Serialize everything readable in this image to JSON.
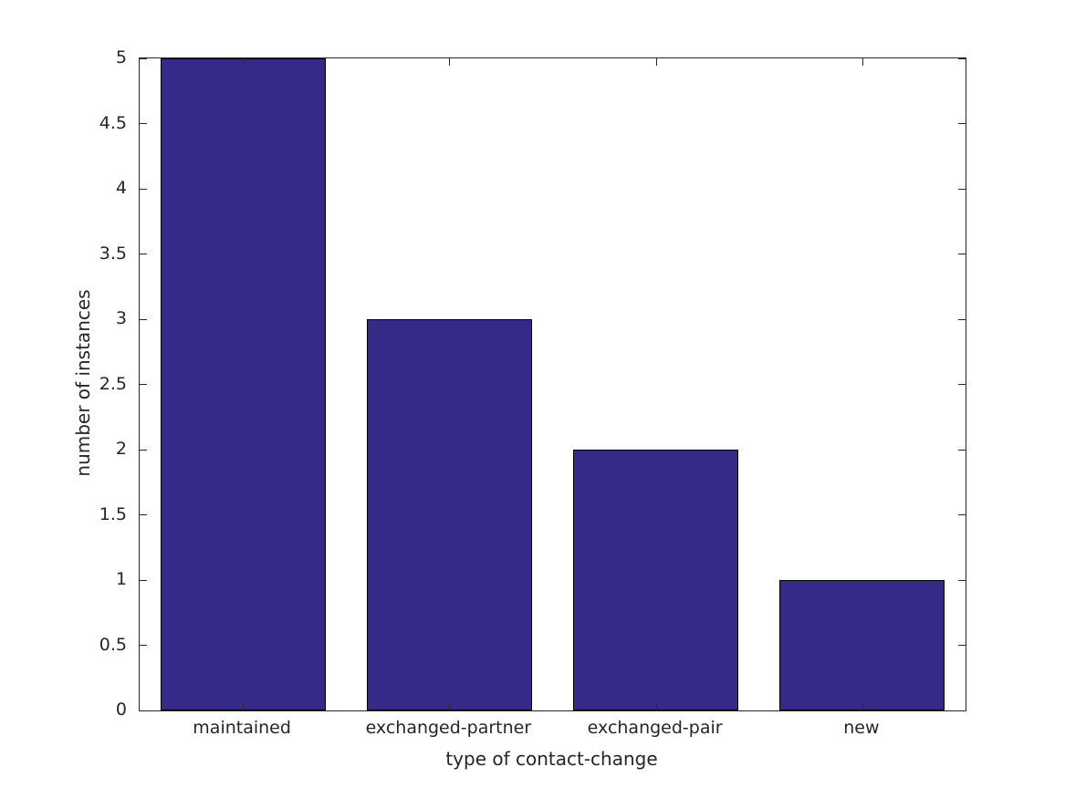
{
  "chart_data": {
    "type": "bar",
    "categories": [
      "maintained",
      "exchanged-partner",
      "exchanged-pair",
      "new"
    ],
    "values": [
      5,
      3,
      2,
      1
    ],
    "title": "",
    "xlabel": "type of contact-change",
    "ylabel": "number of instances",
    "ylim": [
      0,
      5
    ],
    "ytick_step": 0.5,
    "ytick_labels": [
      "0",
      "0.5",
      "1",
      "1.5",
      "2",
      "2.5",
      "3",
      "3.5",
      "4",
      "4.5",
      "5"
    ],
    "bar_width_fraction": 0.8,
    "bar_color": "#352a87",
    "bar_edge_color": "#000000",
    "axis_color": "#262626",
    "text_color": "#262626",
    "background_color": "#ffffff",
    "grid": false,
    "legend": null,
    "box": true,
    "ticks_inward": true
  }
}
